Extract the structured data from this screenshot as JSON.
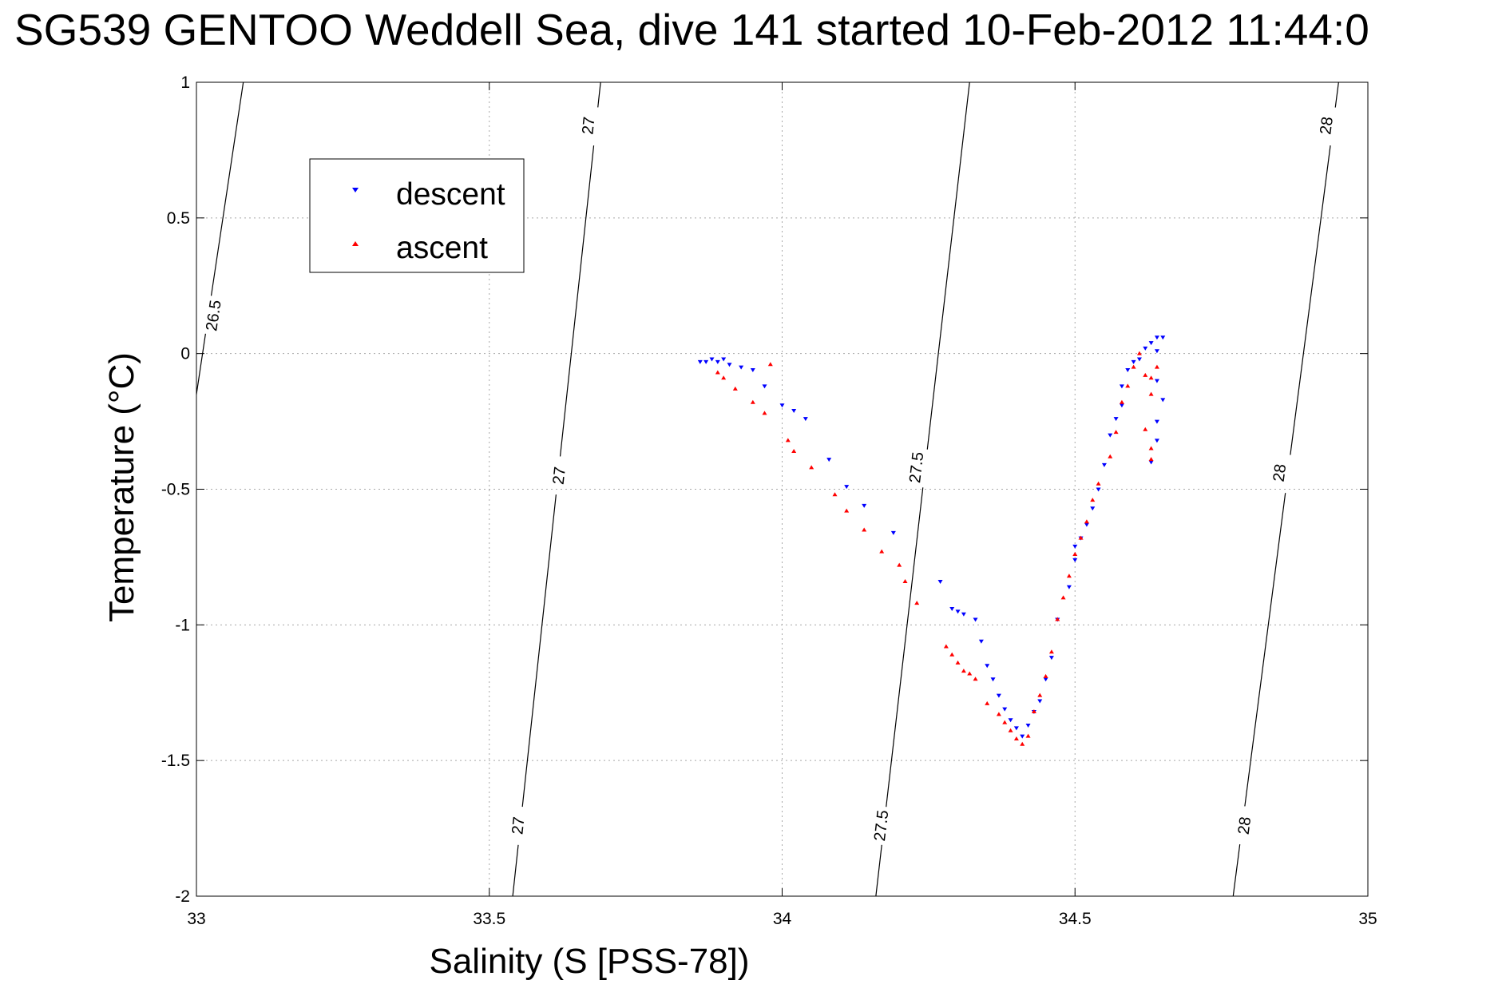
{
  "title": "SG539 GENTOO Weddell Sea, dive 141 started 10-Feb-2012 11:44:0",
  "chart_data": {
    "type": "scatter",
    "title": "SG539 GENTOO Weddell Sea, dive 141 started 10-Feb-2012 11:44:0",
    "xlabel": "Salinity (S [PSS-78])",
    "ylabel": "Temperature (°C)",
    "xlim": [
      33,
      35
    ],
    "ylim": [
      -2,
      1
    ],
    "xticks": [
      33,
      33.5,
      34,
      34.5,
      35
    ],
    "xtick_labels": [
      "33",
      "33.5",
      "34",
      "34.5",
      "35"
    ],
    "yticks": [
      -2,
      -1.5,
      -1,
      -0.5,
      0,
      0.5,
      1
    ],
    "ytick_labels": [
      "-2",
      "-1.5",
      "-1",
      "-0.5",
      "0",
      "0.5",
      "1"
    ],
    "grid": true,
    "legend_position": "top-left",
    "series": [
      {
        "name": "descent",
        "color": "#0000ff",
        "marker": "triangle-down",
        "points": [
          [
            33.86,
            -0.03
          ],
          [
            33.87,
            -0.03
          ],
          [
            33.88,
            -0.02
          ],
          [
            33.89,
            -0.03
          ],
          [
            33.9,
            -0.02
          ],
          [
            33.91,
            -0.04
          ],
          [
            33.93,
            -0.05
          ],
          [
            33.95,
            -0.06
          ],
          [
            33.97,
            -0.12
          ],
          [
            34.0,
            -0.19
          ],
          [
            34.02,
            -0.21
          ],
          [
            34.04,
            -0.24
          ],
          [
            34.08,
            -0.39
          ],
          [
            34.11,
            -0.49
          ],
          [
            34.14,
            -0.56
          ],
          [
            34.19,
            -0.66
          ],
          [
            34.27,
            -0.84
          ],
          [
            34.29,
            -0.94
          ],
          [
            34.3,
            -0.95
          ],
          [
            34.31,
            -0.96
          ],
          [
            34.33,
            -0.98
          ],
          [
            34.34,
            -1.06
          ],
          [
            34.35,
            -1.15
          ],
          [
            34.36,
            -1.2
          ],
          [
            34.37,
            -1.26
          ],
          [
            34.38,
            -1.31
          ],
          [
            34.39,
            -1.35
          ],
          [
            34.4,
            -1.38
          ],
          [
            34.41,
            -1.41
          ],
          [
            34.42,
            -1.37
          ],
          [
            34.43,
            -1.32
          ],
          [
            34.44,
            -1.28
          ],
          [
            34.45,
            -1.2
          ],
          [
            34.46,
            -1.12
          ],
          [
            34.47,
            -0.98
          ],
          [
            34.49,
            -0.86
          ],
          [
            34.5,
            -0.76
          ],
          [
            34.5,
            -0.71
          ],
          [
            34.51,
            -0.68
          ],
          [
            34.52,
            -0.63
          ],
          [
            34.53,
            -0.57
          ],
          [
            34.54,
            -0.5
          ],
          [
            34.55,
            -0.41
          ],
          [
            34.56,
            -0.3
          ],
          [
            34.57,
            -0.24
          ],
          [
            34.58,
            -0.19
          ],
          [
            34.58,
            -0.12
          ],
          [
            34.59,
            -0.06
          ],
          [
            34.6,
            -0.03
          ],
          [
            34.61,
            -0.02
          ],
          [
            34.62,
            0.02
          ],
          [
            34.63,
            0.04
          ],
          [
            34.64,
            0.06
          ],
          [
            34.65,
            0.06
          ],
          [
            34.64,
            0.01
          ],
          [
            34.64,
            -0.1
          ],
          [
            34.65,
            -0.17
          ],
          [
            34.64,
            -0.25
          ],
          [
            34.64,
            -0.32
          ],
          [
            34.63,
            -0.4
          ]
        ]
      },
      {
        "name": "ascent",
        "color": "#ff0000",
        "marker": "triangle-up",
        "points": [
          [
            33.89,
            -0.07
          ],
          [
            33.9,
            -0.09
          ],
          [
            33.92,
            -0.13
          ],
          [
            33.95,
            -0.18
          ],
          [
            33.97,
            -0.22
          ],
          [
            33.98,
            -0.04
          ],
          [
            34.01,
            -0.32
          ],
          [
            34.02,
            -0.36
          ],
          [
            34.05,
            -0.42
          ],
          [
            34.09,
            -0.52
          ],
          [
            34.11,
            -0.58
          ],
          [
            34.14,
            -0.65
          ],
          [
            34.17,
            -0.73
          ],
          [
            34.2,
            -0.78
          ],
          [
            34.21,
            -0.84
          ],
          [
            34.23,
            -0.92
          ],
          [
            34.28,
            -1.08
          ],
          [
            34.29,
            -1.11
          ],
          [
            34.3,
            -1.14
          ],
          [
            34.31,
            -1.17
          ],
          [
            34.32,
            -1.18
          ],
          [
            34.33,
            -1.2
          ],
          [
            34.35,
            -1.29
          ],
          [
            34.37,
            -1.33
          ],
          [
            34.38,
            -1.36
          ],
          [
            34.39,
            -1.39
          ],
          [
            34.4,
            -1.42
          ],
          [
            34.41,
            -1.44
          ],
          [
            34.42,
            -1.41
          ],
          [
            34.43,
            -1.32
          ],
          [
            34.44,
            -1.26
          ],
          [
            34.45,
            -1.19
          ],
          [
            34.46,
            -1.1
          ],
          [
            34.47,
            -0.98
          ],
          [
            34.48,
            -0.9
          ],
          [
            34.49,
            -0.82
          ],
          [
            34.5,
            -0.74
          ],
          [
            34.51,
            -0.68
          ],
          [
            34.52,
            -0.62
          ],
          [
            34.53,
            -0.54
          ],
          [
            34.54,
            -0.48
          ],
          [
            34.56,
            -0.38
          ],
          [
            34.57,
            -0.29
          ],
          [
            34.58,
            -0.18
          ],
          [
            34.59,
            -0.12
          ],
          [
            34.6,
            -0.05
          ],
          [
            34.61,
            0.0
          ],
          [
            34.62,
            -0.08
          ],
          [
            34.63,
            -0.09
          ],
          [
            34.64,
            -0.05
          ],
          [
            34.63,
            -0.15
          ],
          [
            34.62,
            -0.28
          ],
          [
            34.63,
            -0.35
          ],
          [
            34.63,
            -0.39
          ]
        ]
      }
    ],
    "density_contours": [
      {
        "label": "26.5",
        "points": [
          [
            33.0,
            -0.15
          ],
          [
            33.08,
            1.0
          ]
        ],
        "label_positions": [
          [
            33.03,
            0.14
          ]
        ]
      },
      {
        "label": "27",
        "points": [
          [
            33.54,
            -2.0
          ],
          [
            33.69,
            1.0
          ]
        ],
        "label_positions": [
          [
            33.55,
            -1.74
          ],
          [
            33.62,
            -0.45
          ],
          [
            33.67,
            0.84
          ]
        ]
      },
      {
        "label": "27.5",
        "points": [
          [
            34.16,
            -2.0
          ],
          [
            34.32,
            1.0
          ]
        ],
        "label_positions": [
          [
            34.17,
            -1.74
          ],
          [
            34.23,
            -0.42
          ]
        ]
      },
      {
        "label": "28",
        "points": [
          [
            34.77,
            -2.0
          ],
          [
            34.95,
            1.0
          ]
        ],
        "label_positions": [
          [
            34.79,
            -1.74
          ],
          [
            34.85,
            -0.44
          ],
          [
            34.93,
            0.84
          ]
        ]
      }
    ]
  }
}
